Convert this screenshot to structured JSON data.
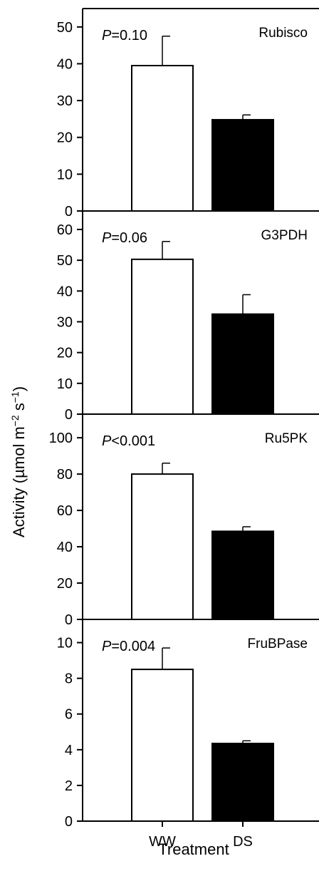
{
  "chart_data": {
    "type": "bar",
    "xlabel": "Treatment",
    "ylabel": "Activity (µmol m",
    "ylabel_sup1": "−2",
    "ylabel_mid": " s",
    "ylabel_sup2": "−1",
    "ylabel_end": ")",
    "categories": [
      "WW",
      "DS"
    ],
    "bar_colors": [
      "#ffffff",
      "#000000"
    ],
    "panels": [
      {
        "label": "Rubisco",
        "p_prefix": "P",
        "p_rest": "=0.10",
        "ylim": [
          0,
          55
        ],
        "ticks": [
          0,
          10,
          20,
          30,
          40,
          50
        ],
        "values": [
          39.5,
          24.8
        ],
        "errors": [
          8.0,
          1.3
        ]
      },
      {
        "label": "G3PDH",
        "p_prefix": "P",
        "p_rest": "=0.06",
        "ylim": [
          0,
          66
        ],
        "ticks": [
          0,
          10,
          20,
          30,
          40,
          50,
          60
        ],
        "values": [
          50.3,
          32.5
        ],
        "errors": [
          5.8,
          6.3
        ]
      },
      {
        "label": "Ru5PK",
        "p_prefix": "P",
        "p_rest": "<0.001",
        "ylim": [
          0,
          113
        ],
        "ticks": [
          0,
          20,
          40,
          60,
          80,
          100
        ],
        "values": [
          80.0,
          48.5
        ],
        "errors": [
          6.0,
          2.5
        ]
      },
      {
        "label": "FruBPase",
        "p_prefix": "P",
        "p_rest": "=0.004",
        "ylim": [
          0,
          11.3
        ],
        "ticks": [
          0,
          2,
          4,
          6,
          8,
          10
        ],
        "values": [
          8.5,
          4.35
        ],
        "errors": [
          1.2,
          0.15
        ]
      }
    ]
  }
}
